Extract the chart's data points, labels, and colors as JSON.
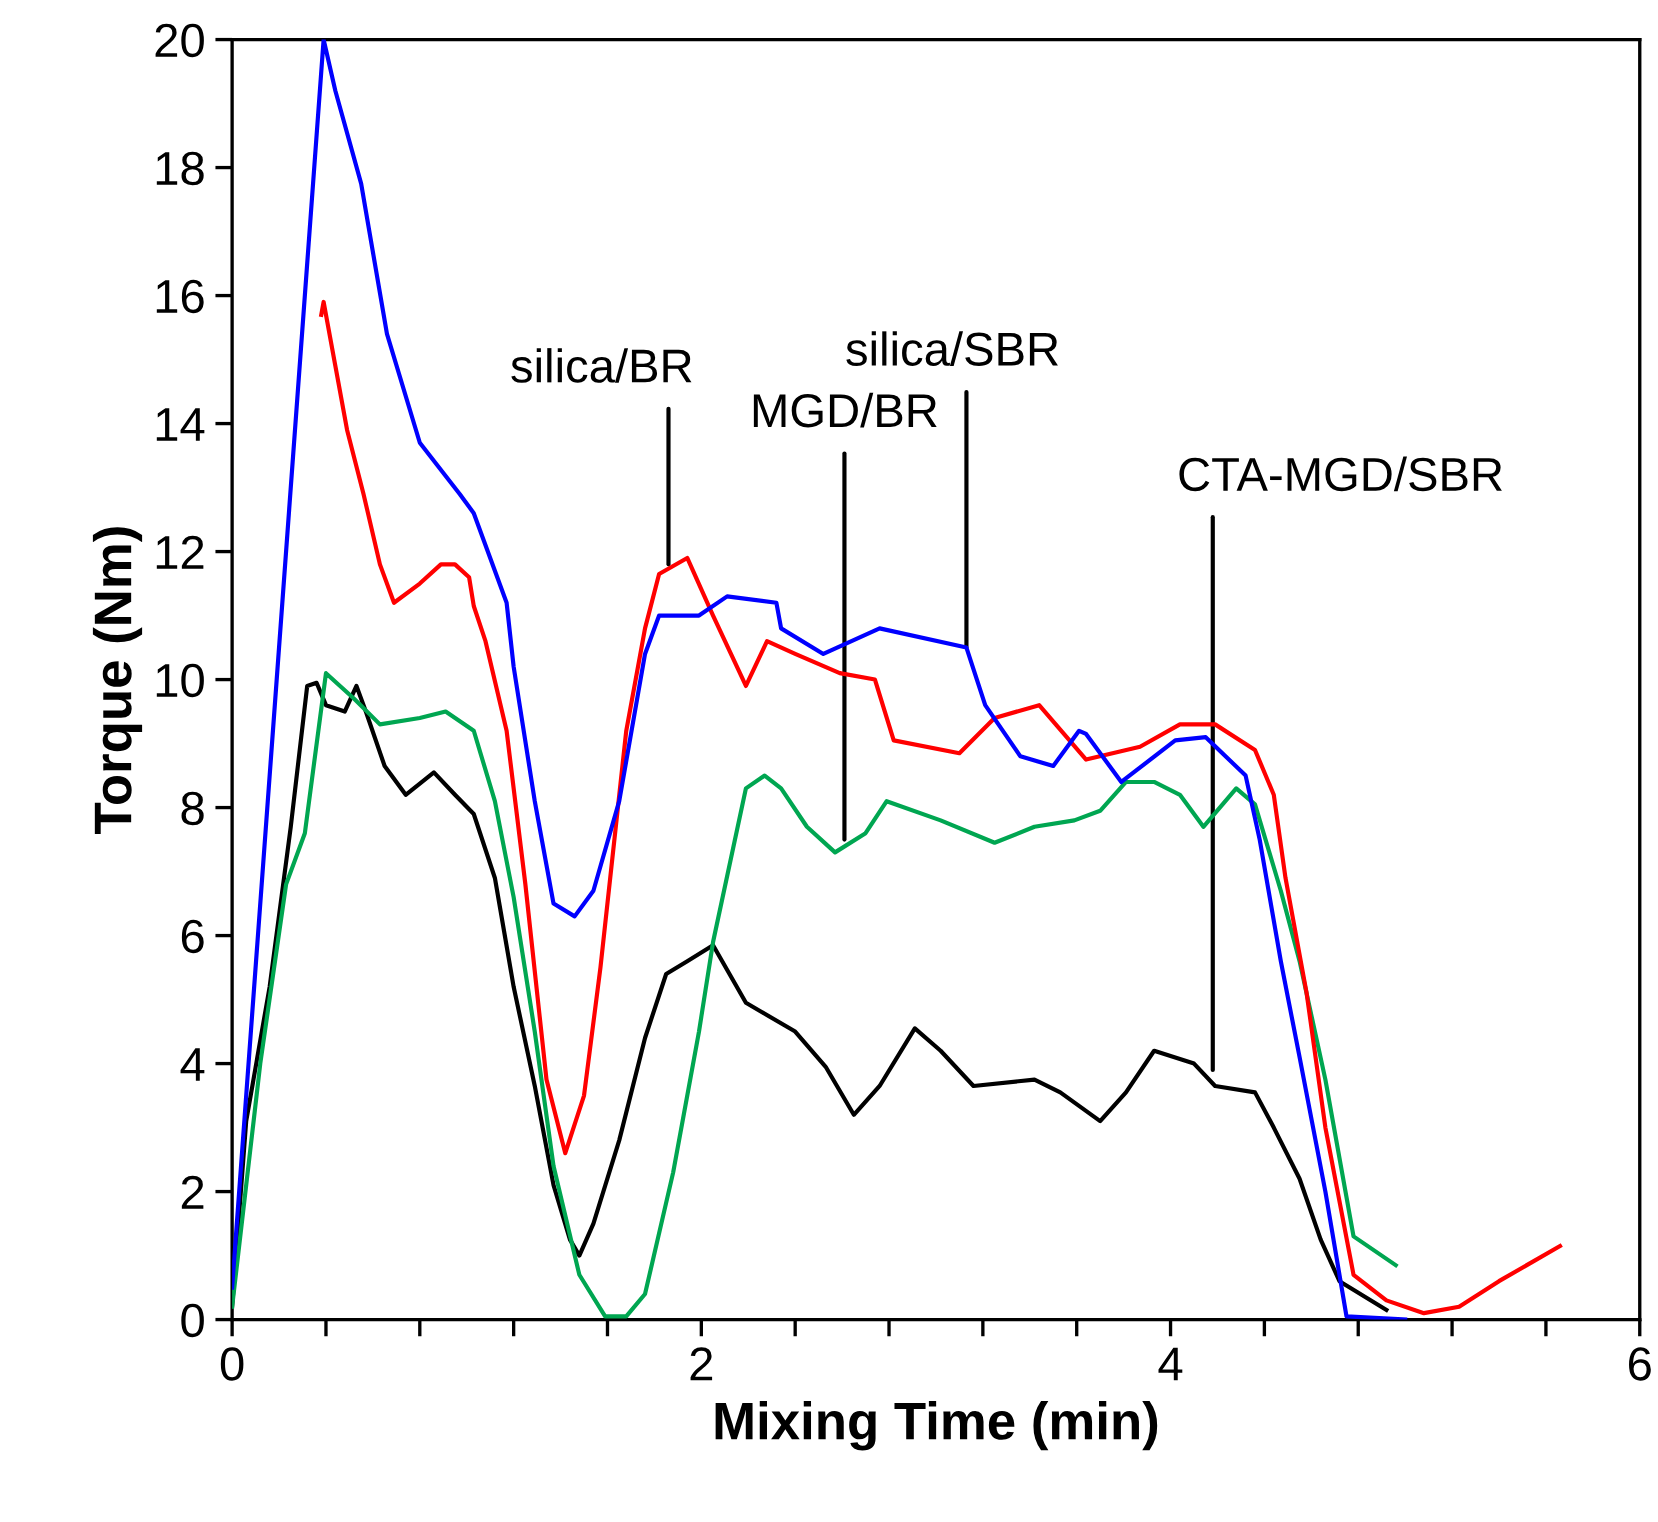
{
  "chart_data": {
    "type": "line",
    "xlabel": "Mixing Time (min)",
    "ylabel": "Torque (Nm)",
    "xlim": [
      0,
      6
    ],
    "ylim": [
      0,
      20
    ],
    "xticks": [
      0,
      {
        "value": 0.4,
        "label": null
      },
      {
        "value": 0.8,
        "label": null
      },
      {
        "value": 1.2,
        "label": null
      },
      {
        "value": 1.6,
        "label": null
      },
      2,
      {
        "value": 2.4,
        "label": null
      },
      {
        "value": 2.8,
        "label": null
      },
      {
        "value": 3.2,
        "label": null
      },
      {
        "value": 3.6,
        "label": null
      },
      4,
      {
        "value": 4.4,
        "label": null
      },
      {
        "value": 4.8,
        "label": null
      },
      {
        "value": 5.2,
        "label": null
      },
      {
        "value": 5.6,
        "label": null
      },
      6
    ],
    "yticks": [
      0,
      2,
      4,
      6,
      8,
      10,
      12,
      14,
      16,
      18,
      20
    ],
    "grid": false,
    "marker": "none",
    "line_style": "solid",
    "series": [
      {
        "color": "#0000ff",
        "x": [
          0,
          0.39,
          0.44,
          0.55,
          0.66,
          0.8,
          0.97,
          1.03,
          1.17,
          1.2,
          1.29,
          1.37,
          1.46,
          1.54,
          1.65,
          1.76,
          1.82,
          1.99,
          2.11,
          2.32,
          2.34,
          2.52,
          2.76,
          3.13,
          3.21,
          3.36,
          3.5,
          3.61,
          3.64,
          3.79,
          4.02,
          4.15,
          4.32,
          4.38,
          4.47,
          4.55,
          4.66,
          4.75,
          5.0
        ],
        "values": [
          0.5,
          20,
          19.2,
          17.75,
          15.4,
          13.7,
          12.9,
          12.6,
          11.2,
          10.2,
          8.1,
          6.5,
          6.3,
          6.7,
          8.1,
          10.4,
          11.0,
          11.0,
          11.3,
          11.2,
          10.8,
          10.4,
          10.8,
          10.5,
          9.6,
          8.8,
          8.65,
          9.2,
          9.15,
          8.4,
          9.05,
          9.1,
          8.5,
          7.5,
          5.6,
          4.1,
          2.0,
          0.05,
          0
        ]
      },
      {
        "color": "#ff0000",
        "x": [
          0.38,
          0.39,
          0.44,
          0.49,
          0.56,
          0.63,
          0.69,
          0.8,
          0.89,
          0.95,
          1.01,
          1.03,
          1.08,
          1.17,
          1.25,
          1.34,
          1.42,
          1.5,
          1.57,
          1.68,
          1.76,
          1.82,
          1.94,
          2.05,
          2.19,
          2.28,
          2.4,
          2.59,
          2.74,
          2.82,
          3.1,
          3.25,
          3.44,
          3.64,
          3.87,
          4.04,
          4.19,
          4.36,
          4.44,
          4.49,
          4.58,
          4.66,
          4.78,
          4.92,
          5.08,
          5.23,
          5.4,
          5.66
        ],
        "values": [
          15.7,
          15.9,
          14.9,
          13.9,
          12.9,
          11.8,
          11.2,
          11.5,
          11.8,
          11.8,
          11.6,
          11.15,
          10.6,
          9.2,
          6.8,
          3.75,
          2.6,
          3.5,
          5.5,
          9.2,
          10.8,
          11.65,
          11.9,
          11.0,
          9.9,
          10.6,
          10.4,
          10.1,
          10.0,
          9.05,
          8.85,
          9.4,
          9.6,
          8.75,
          8.95,
          9.3,
          9.3,
          8.9,
          8.2,
          6.9,
          5.1,
          3.0,
          0.7,
          0.3,
          0.1,
          0.2,
          0.6,
          1.15
        ]
      },
      {
        "color": "#00a651",
        "x": [
          0,
          0.12,
          0.23,
          0.31,
          0.4,
          0.52,
          0.63,
          0.8,
          0.91,
          1.03,
          1.12,
          1.2,
          1.29,
          1.37,
          1.48,
          1.59,
          1.68,
          1.76,
          1.88,
          1.99,
          2.05,
          2.19,
          2.27,
          2.34,
          2.45,
          2.57,
          2.7,
          2.79,
          3.02,
          3.25,
          3.42,
          3.59,
          3.7,
          3.81,
          3.93,
          4.04,
          4.14,
          4.28,
          4.36,
          4.47,
          4.55,
          4.66,
          4.78,
          4.96
        ],
        "values": [
          0.2,
          4.0,
          6.8,
          7.6,
          10.1,
          9.7,
          9.3,
          9.4,
          9.5,
          9.2,
          8.1,
          6.6,
          4.5,
          2.4,
          0.7,
          0.05,
          0.05,
          0.4,
          2.3,
          4.5,
          5.9,
          8.3,
          8.5,
          8.3,
          7.7,
          7.3,
          7.6,
          8.1,
          7.8,
          7.45,
          7.7,
          7.8,
          7.95,
          8.4,
          8.4,
          8.2,
          7.7,
          8.3,
          8.05,
          6.7,
          5.6,
          3.75,
          1.3,
          0.85
        ]
      },
      {
        "color": "#000000",
        "x": [
          0,
          0.06,
          0.16,
          0.25,
          0.32,
          0.36,
          0.4,
          0.48,
          0.53,
          0.57,
          0.65,
          0.74,
          0.86,
          0.95,
          1.03,
          1.12,
          1.2,
          1.29,
          1.37,
          1.44,
          1.48,
          1.54,
          1.65,
          1.76,
          1.85,
          1.94,
          2.05,
          2.19,
          2.4,
          2.53,
          2.65,
          2.76,
          2.91,
          3.02,
          3.16,
          3.42,
          3.53,
          3.7,
          3.81,
          3.93,
          4.1,
          4.19,
          4.36,
          4.44,
          4.55,
          4.64,
          4.72,
          4.92
        ],
        "values": [
          0.2,
          3.1,
          5.2,
          7.7,
          9.9,
          9.95,
          9.6,
          9.5,
          9.9,
          9.5,
          8.65,
          8.2,
          8.55,
          8.2,
          7.9,
          6.9,
          5.2,
          3.65,
          2.1,
          1.25,
          1.0,
          1.5,
          2.8,
          4.4,
          5.4,
          5.6,
          5.85,
          4.95,
          4.5,
          3.95,
          3.2,
          3.65,
          4.55,
          4.2,
          3.65,
          3.75,
          3.55,
          3.1,
          3.55,
          4.2,
          4.0,
          3.65,
          3.55,
          3.0,
          2.2,
          1.25,
          0.6,
          0.15
        ]
      }
    ],
    "annotations": [
      {
        "text": "silica/BR",
        "x": 1.86,
        "y": 11.8
      },
      {
        "text": "silica/SBR",
        "x": 3.13,
        "y": 10.5
      },
      {
        "text": "MGD/BR",
        "x": 2.61,
        "y": 7.5
      },
      {
        "text": "CTA-MGD/SBR",
        "x": 4.18,
        "y": 3.9
      }
    ]
  }
}
